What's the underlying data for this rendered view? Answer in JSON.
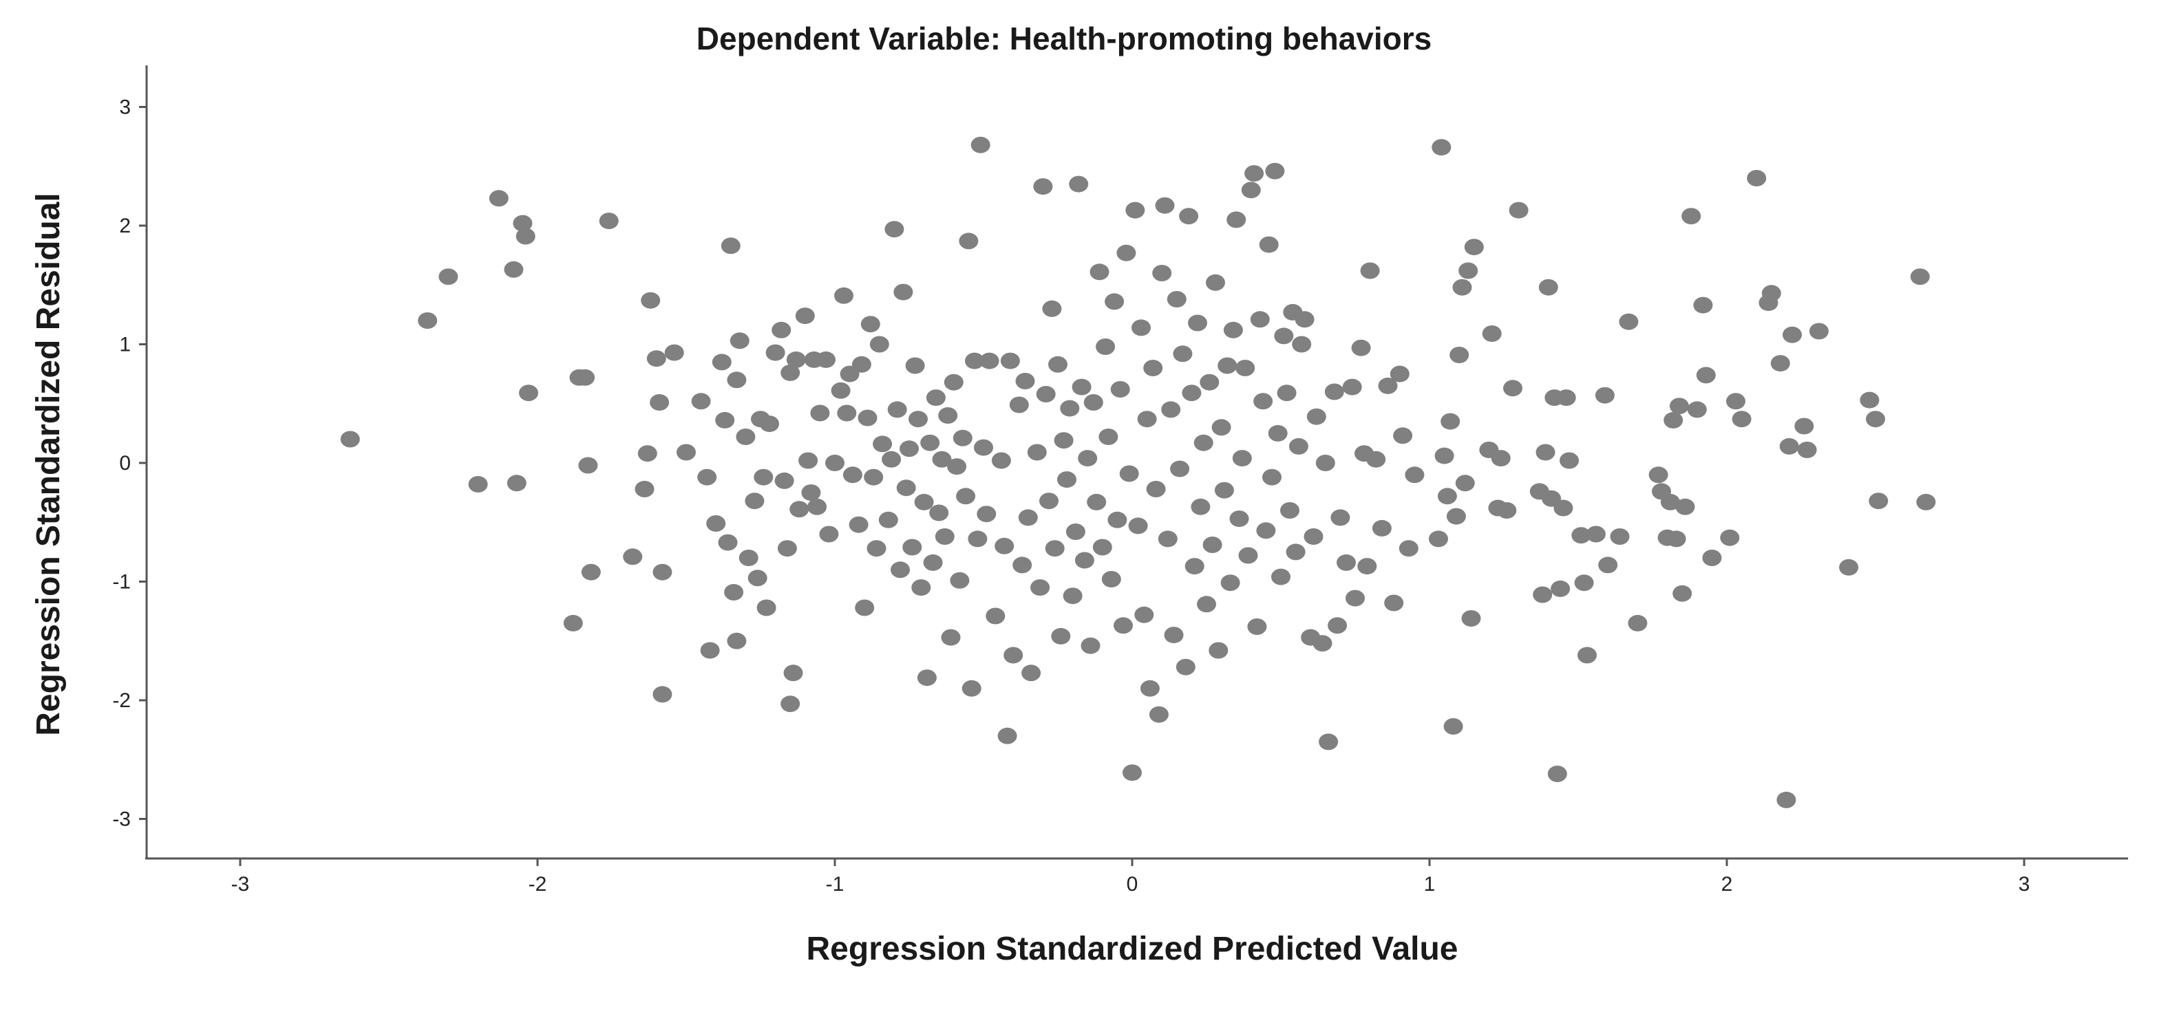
{
  "chart_data": {
    "type": "scatter",
    "title": "Dependent Variable: Health-promoting behaviors",
    "xlabel": "Regression Standardized Predicted Value",
    "ylabel": "Regression Standardized Residual",
    "xlim": [
      -3.3,
      3.3
    ],
    "ylim": [
      -3.3,
      3.3
    ],
    "xticks": [
      -3,
      -2,
      -1,
      0,
      1,
      2,
      3
    ],
    "yticks": [
      -3,
      -2,
      -1,
      0,
      1,
      2,
      3
    ],
    "xtick_labels": [
      "-3",
      "-2",
      "-1",
      "0",
      "1",
      "2",
      "3"
    ],
    "ytick_labels": [
      "-3",
      "-2",
      "-1",
      "0",
      "1",
      "2",
      "3"
    ],
    "grid": false,
    "marker_color": "#808080",
    "axis_color": "#555555",
    "points": [
      [
        -2.63,
        0.2
      ],
      [
        -2.37,
        1.2
      ],
      [
        -2.3,
        1.57
      ],
      [
        -2.2,
        -0.18
      ],
      [
        -2.13,
        2.23
      ],
      [
        -2.08,
        1.63
      ],
      [
        -2.07,
        -0.17
      ],
      [
        -2.05,
        2.02
      ],
      [
        -2.04,
        1.91
      ],
      [
        -2.03,
        0.59
      ],
      [
        -1.86,
        0.72
      ],
      [
        -1.84,
        0.72
      ],
      [
        -1.83,
        -0.02
      ],
      [
        -1.82,
        -0.92
      ],
      [
        -1.76,
        2.04
      ],
      [
        -1.88,
        -1.35
      ],
      [
        -1.68,
        -0.79
      ],
      [
        -1.64,
        -0.22
      ],
      [
        -1.63,
        0.08
      ],
      [
        -1.62,
        1.37
      ],
      [
        -1.6,
        0.88
      ],
      [
        -1.59,
        0.51
      ],
      [
        -1.58,
        -0.92
      ],
      [
        -1.58,
        -1.95
      ],
      [
        -1.54,
        0.93
      ],
      [
        -1.5,
        0.09
      ],
      [
        -1.45,
        0.52
      ],
      [
        -1.43,
        -0.12
      ],
      [
        -1.42,
        -1.58
      ],
      [
        -1.4,
        -0.51
      ],
      [
        -1.38,
        0.85
      ],
      [
        -1.37,
        0.36
      ],
      [
        -1.36,
        -0.67
      ],
      [
        -1.35,
        1.83
      ],
      [
        -1.34,
        -1.09
      ],
      [
        -1.33,
        0.7
      ],
      [
        -1.33,
        -1.5
      ],
      [
        -1.32,
        1.03
      ],
      [
        -1.3,
        0.22
      ],
      [
        -1.29,
        -0.8
      ],
      [
        -1.27,
        -0.32
      ],
      [
        -1.26,
        -0.97
      ],
      [
        -1.25,
        0.37
      ],
      [
        -1.24,
        -0.12
      ],
      [
        -1.23,
        -1.22
      ],
      [
        -1.22,
        0.33
      ],
      [
        -1.2,
        0.93
      ],
      [
        -1.18,
        1.12
      ],
      [
        -1.17,
        -0.15
      ],
      [
        -1.16,
        -0.72
      ],
      [
        -1.15,
        -2.03
      ],
      [
        -1.15,
        0.76
      ],
      [
        -1.14,
        -1.77
      ],
      [
        -1.13,
        0.87
      ],
      [
        -1.12,
        -0.39
      ],
      [
        -1.1,
        1.24
      ],
      [
        -1.09,
        0.02
      ],
      [
        -1.08,
        -0.25
      ],
      [
        -1.07,
        0.87
      ],
      [
        -1.06,
        -0.37
      ],
      [
        -1.05,
        0.42
      ],
      [
        -1.03,
        0.87
      ],
      [
        -1.02,
        -0.6
      ],
      [
        -1.0,
        0.0
      ],
      [
        -0.98,
        0.61
      ],
      [
        -0.97,
        1.41
      ],
      [
        -0.96,
        0.42
      ],
      [
        -0.95,
        0.75
      ],
      [
        -0.94,
        -0.1
      ],
      [
        -0.92,
        -0.52
      ],
      [
        -0.91,
        0.83
      ],
      [
        -0.9,
        -1.22
      ],
      [
        -0.89,
        0.38
      ],
      [
        -0.88,
        1.17
      ],
      [
        -0.87,
        -0.12
      ],
      [
        -0.86,
        -0.72
      ],
      [
        -0.85,
        1.0
      ],
      [
        -0.84,
        0.16
      ],
      [
        -0.82,
        -0.48
      ],
      [
        -0.81,
        0.03
      ],
      [
        -0.8,
        1.97
      ],
      [
        -0.79,
        0.45
      ],
      [
        -0.78,
        -0.9
      ],
      [
        -0.77,
        1.44
      ],
      [
        -0.76,
        -0.21
      ],
      [
        -0.75,
        0.12
      ],
      [
        -0.74,
        -0.71
      ],
      [
        -0.73,
        0.82
      ],
      [
        -0.72,
        0.37
      ],
      [
        -0.71,
        -1.05
      ],
      [
        -0.7,
        -0.33
      ],
      [
        -0.69,
        -1.81
      ],
      [
        -0.68,
        0.17
      ],
      [
        -0.67,
        -0.84
      ],
      [
        -0.66,
        0.55
      ],
      [
        -0.65,
        -0.42
      ],
      [
        -0.64,
        0.03
      ],
      [
        -0.63,
        -0.62
      ],
      [
        -0.62,
        0.4
      ],
      [
        -0.61,
        -1.47
      ],
      [
        -0.6,
        0.68
      ],
      [
        -0.59,
        -0.03
      ],
      [
        -0.58,
        -0.99
      ],
      [
        -0.57,
        0.21
      ],
      [
        -0.56,
        -0.28
      ],
      [
        -0.55,
        1.87
      ],
      [
        -0.54,
        -1.9
      ],
      [
        -0.53,
        0.86
      ],
      [
        -0.52,
        -0.64
      ],
      [
        -0.51,
        2.68
      ],
      [
        -0.5,
        0.13
      ],
      [
        -0.49,
        -0.43
      ],
      [
        -0.48,
        0.86
      ],
      [
        -0.46,
        -1.29
      ],
      [
        -0.44,
        0.02
      ],
      [
        -0.43,
        -0.7
      ],
      [
        -0.42,
        -2.3
      ],
      [
        -0.41,
        0.86
      ],
      [
        -0.4,
        -1.62
      ],
      [
        -0.38,
        0.49
      ],
      [
        -0.37,
        -0.86
      ],
      [
        -0.36,
        0.69
      ],
      [
        -0.35,
        -0.46
      ],
      [
        -0.34,
        -1.77
      ],
      [
        -0.32,
        0.09
      ],
      [
        -0.31,
        -1.05
      ],
      [
        -0.3,
        2.33
      ],
      [
        -0.29,
        0.58
      ],
      [
        -0.28,
        -0.32
      ],
      [
        -0.27,
        1.3
      ],
      [
        -0.26,
        -0.72
      ],
      [
        -0.25,
        0.83
      ],
      [
        -0.24,
        -1.46
      ],
      [
        -0.23,
        0.19
      ],
      [
        -0.22,
        -0.14
      ],
      [
        -0.21,
        0.46
      ],
      [
        -0.2,
        -1.12
      ],
      [
        -0.19,
        -0.58
      ],
      [
        -0.18,
        2.35
      ],
      [
        -0.17,
        0.64
      ],
      [
        -0.16,
        -0.82
      ],
      [
        -0.15,
        0.04
      ],
      [
        -0.14,
        -1.54
      ],
      [
        -0.13,
        0.51
      ],
      [
        -0.12,
        -0.33
      ],
      [
        -0.11,
        1.61
      ],
      [
        -0.1,
        -0.71
      ],
      [
        -0.09,
        0.98
      ],
      [
        -0.08,
        0.22
      ],
      [
        -0.07,
        -0.98
      ],
      [
        -0.06,
        1.36
      ],
      [
        -0.05,
        -0.48
      ],
      [
        -0.04,
        0.62
      ],
      [
        -0.03,
        -1.37
      ],
      [
        -0.02,
        1.77
      ],
      [
        -0.01,
        -0.09
      ],
      [
        0.0,
        -2.61
      ],
      [
        0.01,
        2.13
      ],
      [
        0.02,
        -0.53
      ],
      [
        0.03,
        1.14
      ],
      [
        0.04,
        -1.28
      ],
      [
        0.05,
        0.37
      ],
      [
        0.06,
        -1.9
      ],
      [
        0.07,
        0.8
      ],
      [
        0.08,
        -0.22
      ],
      [
        0.09,
        -2.12
      ],
      [
        0.1,
        1.6
      ],
      [
        0.11,
        2.17
      ],
      [
        0.12,
        -0.64
      ],
      [
        0.13,
        0.45
      ],
      [
        0.14,
        -1.45
      ],
      [
        0.15,
        1.38
      ],
      [
        0.16,
        -0.05
      ],
      [
        0.17,
        0.92
      ],
      [
        0.18,
        -1.72
      ],
      [
        0.19,
        2.08
      ],
      [
        0.2,
        0.59
      ],
      [
        0.21,
        -0.87
      ],
      [
        0.22,
        1.18
      ],
      [
        0.23,
        -0.37
      ],
      [
        0.24,
        0.17
      ],
      [
        0.25,
        -1.19
      ],
      [
        0.26,
        0.68
      ],
      [
        0.27,
        -0.69
      ],
      [
        0.28,
        1.52
      ],
      [
        0.29,
        -1.58
      ],
      [
        0.3,
        0.3
      ],
      [
        0.31,
        -0.23
      ],
      [
        0.32,
        0.82
      ],
      [
        0.33,
        -1.01
      ],
      [
        0.34,
        1.12
      ],
      [
        0.35,
        2.05
      ],
      [
        0.36,
        -0.47
      ],
      [
        0.37,
        0.04
      ],
      [
        0.38,
        0.8
      ],
      [
        0.39,
        -0.78
      ],
      [
        0.4,
        2.3
      ],
      [
        0.41,
        2.44
      ],
      [
        0.42,
        -1.38
      ],
      [
        0.43,
        1.21
      ],
      [
        0.44,
        0.52
      ],
      [
        0.45,
        -0.57
      ],
      [
        0.46,
        1.84
      ],
      [
        0.47,
        -0.12
      ],
      [
        0.48,
        2.46
      ],
      [
        0.49,
        0.25
      ],
      [
        0.5,
        -0.96
      ],
      [
        0.51,
        1.07
      ],
      [
        0.52,
        0.59
      ],
      [
        0.53,
        -0.4
      ],
      [
        0.54,
        1.27
      ],
      [
        0.55,
        -0.75
      ],
      [
        0.56,
        0.14
      ],
      [
        0.57,
        1.0
      ],
      [
        0.58,
        1.21
      ],
      [
        0.6,
        -1.47
      ],
      [
        0.61,
        -0.62
      ],
      [
        0.62,
        0.39
      ],
      [
        0.64,
        -1.52
      ],
      [
        0.65,
        0.0
      ],
      [
        0.66,
        -2.35
      ],
      [
        0.68,
        0.6
      ],
      [
        0.69,
        -1.37
      ],
      [
        0.7,
        -0.46
      ],
      [
        0.72,
        -0.84
      ],
      [
        0.74,
        0.64
      ],
      [
        0.75,
        -1.14
      ],
      [
        0.77,
        0.97
      ],
      [
        0.78,
        0.08
      ],
      [
        0.79,
        -0.87
      ],
      [
        0.8,
        1.62
      ],
      [
        0.82,
        0.03
      ],
      [
        0.84,
        -0.55
      ],
      [
        0.86,
        0.65
      ],
      [
        0.88,
        -1.18
      ],
      [
        0.9,
        0.75
      ],
      [
        0.91,
        0.23
      ],
      [
        0.93,
        -0.72
      ],
      [
        0.95,
        -0.1
      ],
      [
        1.03,
        -0.64
      ],
      [
        1.04,
        2.66
      ],
      [
        1.05,
        0.06
      ],
      [
        1.06,
        -0.28
      ],
      [
        1.07,
        0.35
      ],
      [
        1.08,
        -2.22
      ],
      [
        1.09,
        -0.45
      ],
      [
        1.1,
        0.91
      ],
      [
        1.11,
        1.48
      ],
      [
        1.12,
        -0.17
      ],
      [
        1.13,
        1.62
      ],
      [
        1.14,
        -1.31
      ],
      [
        1.15,
        1.82
      ],
      [
        1.2,
        0.11
      ],
      [
        1.21,
        1.09
      ],
      [
        1.23,
        -0.38
      ],
      [
        1.24,
        0.04
      ],
      [
        1.26,
        -0.4
      ],
      [
        1.28,
        0.63
      ],
      [
        1.3,
        2.13
      ],
      [
        1.37,
        -0.24
      ],
      [
        1.38,
        -1.11
      ],
      [
        1.39,
        0.09
      ],
      [
        1.4,
        1.48
      ],
      [
        1.41,
        -0.3
      ],
      [
        1.42,
        0.55
      ],
      [
        1.43,
        -2.62
      ],
      [
        1.44,
        -1.06
      ],
      [
        1.45,
        -0.38
      ],
      [
        1.46,
        0.55
      ],
      [
        1.47,
        0.02
      ],
      [
        1.51,
        -0.61
      ],
      [
        1.52,
        -1.01
      ],
      [
        1.53,
        -1.62
      ],
      [
        1.56,
        -0.6
      ],
      [
        1.59,
        0.57
      ],
      [
        1.6,
        -0.86
      ],
      [
        1.64,
        -0.62
      ],
      [
        1.67,
        1.19
      ],
      [
        1.7,
        -1.35
      ],
      [
        1.77,
        -0.1
      ],
      [
        1.78,
        -0.24
      ],
      [
        1.8,
        -0.63
      ],
      [
        1.81,
        -0.33
      ],
      [
        1.82,
        0.36
      ],
      [
        1.83,
        -0.64
      ],
      [
        1.84,
        0.48
      ],
      [
        1.85,
        -1.1
      ],
      [
        1.86,
        -0.37
      ],
      [
        1.88,
        2.08
      ],
      [
        1.9,
        0.45
      ],
      [
        1.92,
        1.33
      ],
      [
        1.93,
        0.74
      ],
      [
        1.95,
        -0.8
      ],
      [
        2.01,
        -0.63
      ],
      [
        2.03,
        0.52
      ],
      [
        2.05,
        0.37
      ],
      [
        2.1,
        2.4
      ],
      [
        2.14,
        1.35
      ],
      [
        2.15,
        1.43
      ],
      [
        2.18,
        0.84
      ],
      [
        2.2,
        -2.84
      ],
      [
        2.21,
        0.14
      ],
      [
        2.22,
        1.08
      ],
      [
        2.26,
        0.31
      ],
      [
        2.27,
        0.11
      ],
      [
        2.31,
        1.11
      ],
      [
        2.41,
        -0.88
      ],
      [
        2.48,
        0.53
      ],
      [
        2.5,
        0.37
      ],
      [
        2.51,
        -0.32
      ],
      [
        2.65,
        1.57
      ],
      [
        2.67,
        -0.33
      ]
    ]
  }
}
